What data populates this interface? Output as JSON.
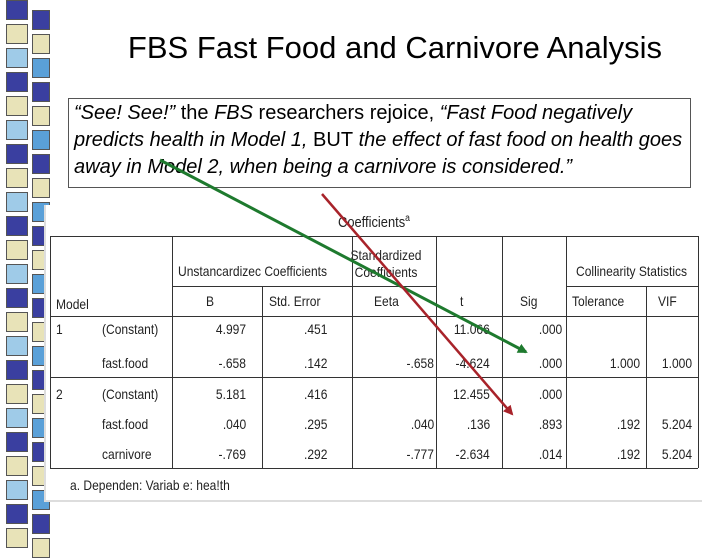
{
  "slide": {
    "title": "FBS Fast Food and Carnivore Analysis"
  },
  "quote": {
    "part1": "“See!  See!”",
    "part2": " the ",
    "part3": "FBS",
    "part4": " researchers rejoice, ",
    "part5": "“Fast Food negatively predicts health in Model 1, ",
    "part6": "BUT",
    "part7": " the effect of fast food on health goes away in Model 2, when being a carnivore is considered.”"
  },
  "table": {
    "title": "Coefficients",
    "title_superscript": "a",
    "headers": {
      "unstandardized": "Unstancardizec Coefficients",
      "standardized": "Standardized Coefficients",
      "collinearity": "Collinearity Statistics",
      "model": "Model",
      "b": "B",
      "std_error": "Std. Error",
      "beta": "Eeta",
      "t": "t",
      "sig": "Sig",
      "tolerance": "Tolerance",
      "vif": "VIF"
    },
    "rows": [
      {
        "model": "1",
        "variable": "(Constant)",
        "b": "4.997",
        "se": ".451",
        "beta": "",
        "t": "11.066",
        "sig": ".000",
        "tol": "",
        "vif": ""
      },
      {
        "model": "",
        "variable": "fast.food",
        "b": "-.658",
        "se": ".142",
        "beta": "-.658",
        "t": "-4.624",
        "sig": ".000",
        "tol": "1.000",
        "vif": "1.000"
      },
      {
        "model": "2",
        "variable": "(Constant)",
        "b": "5.181",
        "se": ".416",
        "beta": "",
        "t": "12.455",
        "sig": ".000",
        "tol": "",
        "vif": ""
      },
      {
        "model": "",
        "variable": "fast.food",
        "b": ".040",
        "se": ".295",
        "beta": ".040",
        "t": ".136",
        "sig": ".893",
        "tol": ".192",
        "vif": "5.204"
      },
      {
        "model": "",
        "variable": "carnivore",
        "b": "-.769",
        "se": ".292",
        "beta": "-.777",
        "t": "-2.634",
        "sig": ".014",
        "tol": ".192",
        "vif": "5.204"
      }
    ],
    "footnote": "a. Dependen: Variab e: hea!th"
  },
  "colors": {
    "arrow_green": "#1e7a2e",
    "arrow_red": "#a8232a"
  }
}
